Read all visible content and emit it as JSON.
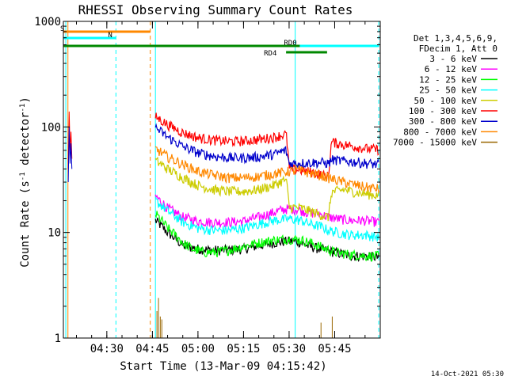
{
  "chart_data": {
    "type": "line",
    "title": "RHESSI Observing Summary Count Rates",
    "xlabel": "Start Time (13-Mar-09 04:15:42)",
    "ylabel_main": "Count Rate (s",
    "ylabel_sup1": "-1",
    "ylabel_mid": " detector",
    "ylabel_sup2": "-1",
    "ylabel_end": ")",
    "yscale": "log",
    "ylim": [
      1,
      1000
    ],
    "xlim_min": [
      15.7,
      120
    ],
    "y_ticks": [
      {
        "value": 1,
        "label": "1"
      },
      {
        "value": 10,
        "label": "10"
      },
      {
        "value": 100,
        "label": "100"
      },
      {
        "value": 1000,
        "label": "1000"
      }
    ],
    "x_ticks": [
      {
        "value": 30,
        "label": "04:30"
      },
      {
        "value": 45,
        "label": "04:45"
      },
      {
        "value": 60,
        "label": "05:00"
      },
      {
        "value": 75,
        "label": "05:15"
      },
      {
        "value": 90,
        "label": "05:30"
      },
      {
        "value": 105,
        "label": "05:45"
      }
    ],
    "legend_header": [
      "Det 1,3,4,5,6,9,",
      "FDecim 1, Att 0"
    ],
    "legend_position": "right",
    "footer_date": "14-Oct-2021 05:30",
    "data_start": 46.0,
    "data_end": 119.5,
    "series": [
      {
        "name": "3 - 6 keV",
        "color": "#000000",
        "points": [
          [
            46,
            13
          ],
          [
            50,
            10
          ],
          [
            55,
            7.5
          ],
          [
            60,
            7
          ],
          [
            65,
            6.8
          ],
          [
            70,
            6.8
          ],
          [
            75,
            7
          ],
          [
            80,
            7.5
          ],
          [
            85,
            8
          ],
          [
            90,
            8.3
          ],
          [
            93,
            8.2
          ],
          [
            96,
            7.5
          ],
          [
            100,
            7
          ],
          [
            105,
            6.5
          ],
          [
            110,
            6
          ],
          [
            115,
            6
          ],
          [
            119.5,
            5.8
          ]
        ]
      },
      {
        "name": "6 - 12 keV",
        "color": "#ff00ff",
        "points": [
          [
            46,
            22
          ],
          [
            50,
            17
          ],
          [
            55,
            14
          ],
          [
            60,
            12.8
          ],
          [
            65,
            12.5
          ],
          [
            70,
            12.5
          ],
          [
            75,
            12.8
          ],
          [
            80,
            14
          ],
          [
            85,
            15.5
          ],
          [
            88,
            16.5
          ],
          [
            90,
            16.8
          ],
          [
            93,
            16.5
          ],
          [
            96,
            15.5
          ],
          [
            100,
            15
          ],
          [
            103,
            14
          ],
          [
            106,
            13.5
          ],
          [
            110,
            13
          ],
          [
            115,
            13
          ],
          [
            119.5,
            12.5
          ]
        ]
      },
      {
        "name": "12 - 25 keV",
        "color": "#00ff00",
        "points": [
          [
            46,
            15
          ],
          [
            50,
            11
          ],
          [
            55,
            8
          ],
          [
            58,
            7
          ],
          [
            62,
            6.5
          ],
          [
            66,
            6.5
          ],
          [
            70,
            6.8
          ],
          [
            73,
            7.2
          ],
          [
            76,
            7.5
          ],
          [
            80,
            8
          ],
          [
            85,
            8.5
          ],
          [
            90,
            8.7
          ],
          [
            94,
            8.5
          ],
          [
            97,
            8
          ],
          [
            101,
            7.2
          ],
          [
            105,
            6.5
          ],
          [
            110,
            6.2
          ],
          [
            115,
            6
          ],
          [
            119.5,
            6
          ]
        ]
      },
      {
        "name": "25 - 50 keV",
        "color": "#00ffff",
        "points": [
          [
            46,
            20
          ],
          [
            50,
            16
          ],
          [
            55,
            12.5
          ],
          [
            60,
            11
          ],
          [
            65,
            10.5
          ],
          [
            70,
            10.5
          ],
          [
            75,
            11
          ],
          [
            80,
            12
          ],
          [
            85,
            13
          ],
          [
            90,
            13.5
          ],
          [
            94,
            13
          ],
          [
            97,
            12
          ],
          [
            100,
            11.5
          ],
          [
            103,
            10.5
          ],
          [
            106,
            10
          ],
          [
            110,
            9.5
          ],
          [
            115,
            9.5
          ],
          [
            119.5,
            9
          ]
        ]
      },
      {
        "name": "50 - 100 keV",
        "color": "#cccc00",
        "points": [
          [
            46,
            48
          ],
          [
            50,
            40
          ],
          [
            55,
            33
          ],
          [
            60,
            28
          ],
          [
            65,
            25.5
          ],
          [
            70,
            24.5
          ],
          [
            75,
            24.5
          ],
          [
            80,
            25.5
          ],
          [
            85,
            28
          ],
          [
            88,
            31
          ],
          [
            89,
            31.5
          ],
          [
            90,
            17.5
          ],
          [
            94,
            17
          ],
          [
            98,
            15.5
          ],
          [
            101,
            14.5
          ],
          [
            103,
            14
          ],
          [
            104,
            24
          ],
          [
            108,
            25.5
          ],
          [
            112,
            24
          ],
          [
            116,
            23
          ],
          [
            119.5,
            22.5
          ]
        ]
      },
      {
        "name": "100 - 300 keV",
        "color": "#ff0000",
        "points": [
          [
            46,
            125
          ],
          [
            50,
            105
          ],
          [
            55,
            88
          ],
          [
            60,
            79
          ],
          [
            65,
            75
          ],
          [
            70,
            73
          ],
          [
            75,
            73.5
          ],
          [
            80,
            76
          ],
          [
            85,
            80
          ],
          [
            88,
            84
          ],
          [
            89,
            86
          ],
          [
            90,
            40
          ],
          [
            94,
            39
          ],
          [
            98,
            37
          ],
          [
            101,
            35
          ],
          [
            103,
            34
          ],
          [
            104,
            72
          ],
          [
            108,
            68
          ],
          [
            112,
            65
          ],
          [
            116,
            62
          ],
          [
            119.5,
            61
          ]
        ]
      },
      {
        "name": "300 - 800 keV",
        "color": "#0000cc",
        "points": [
          [
            46,
            98
          ],
          [
            50,
            80
          ],
          [
            55,
            65
          ],
          [
            60,
            57
          ],
          [
            65,
            53
          ],
          [
            70,
            51
          ],
          [
            75,
            51
          ],
          [
            80,
            52
          ],
          [
            85,
            55
          ],
          [
            88,
            59
          ],
          [
            89,
            60
          ],
          [
            90,
            45
          ],
          [
            94,
            45.5
          ],
          [
            98,
            46
          ],
          [
            101,
            46
          ],
          [
            103,
            45
          ],
          [
            104,
            49
          ],
          [
            108,
            47.5
          ],
          [
            112,
            46.5
          ],
          [
            116,
            45
          ],
          [
            119.5,
            44
          ]
        ]
      },
      {
        "name": "800 - 7000 keV",
        "color": "#ff8800",
        "points": [
          [
            46,
            62
          ],
          [
            50,
            52
          ],
          [
            55,
            44
          ],
          [
            60,
            38
          ],
          [
            65,
            35
          ],
          [
            70,
            33
          ],
          [
            75,
            33
          ],
          [
            80,
            34
          ],
          [
            85,
            36
          ],
          [
            90,
            38
          ],
          [
            93,
            39
          ],
          [
            96,
            37
          ],
          [
            100,
            35
          ],
          [
            103,
            33
          ],
          [
            106,
            31
          ],
          [
            110,
            29
          ],
          [
            115,
            27
          ],
          [
            119.5,
            26
          ]
        ]
      },
      {
        "name": "7000 - 15000 keV",
        "color": "#996600",
        "points": []
      }
    ],
    "bars": [
      {
        "label": "S",
        "color": "#ff8800",
        "x0": 15.7,
        "x1": 44.3
      },
      {
        "label": "N",
        "color": "#00ffff",
        "x0": 15.7,
        "x1": 33.0
      },
      {
        "label": "",
        "color": "#008800",
        "x0": 15.7,
        "x1": 119.5
      },
      {
        "label": "RD0",
        "color": "#00ffff",
        "x0": 93.5,
        "x1": 119.5
      },
      {
        "label": "RD4",
        "color": "#008800",
        "x0": 89.0,
        "x1": 102.5
      }
    ],
    "vlines": [
      {
        "x": 16.5,
        "color": "#00ffff",
        "dash": false
      },
      {
        "x": 17.2,
        "color": "#ff8800",
        "dash": false
      },
      {
        "x": 33.0,
        "color": "#00ffff",
        "dash": true
      },
      {
        "x": 44.3,
        "color": "#ff8800",
        "dash": true
      },
      {
        "x": 46.0,
        "color": "#00ffff",
        "dash": false
      },
      {
        "x": 92.0,
        "color": "#00ffff",
        "dash": false
      },
      {
        "x": 119.5,
        "color": "#00ffff",
        "dash": true
      }
    ]
  }
}
